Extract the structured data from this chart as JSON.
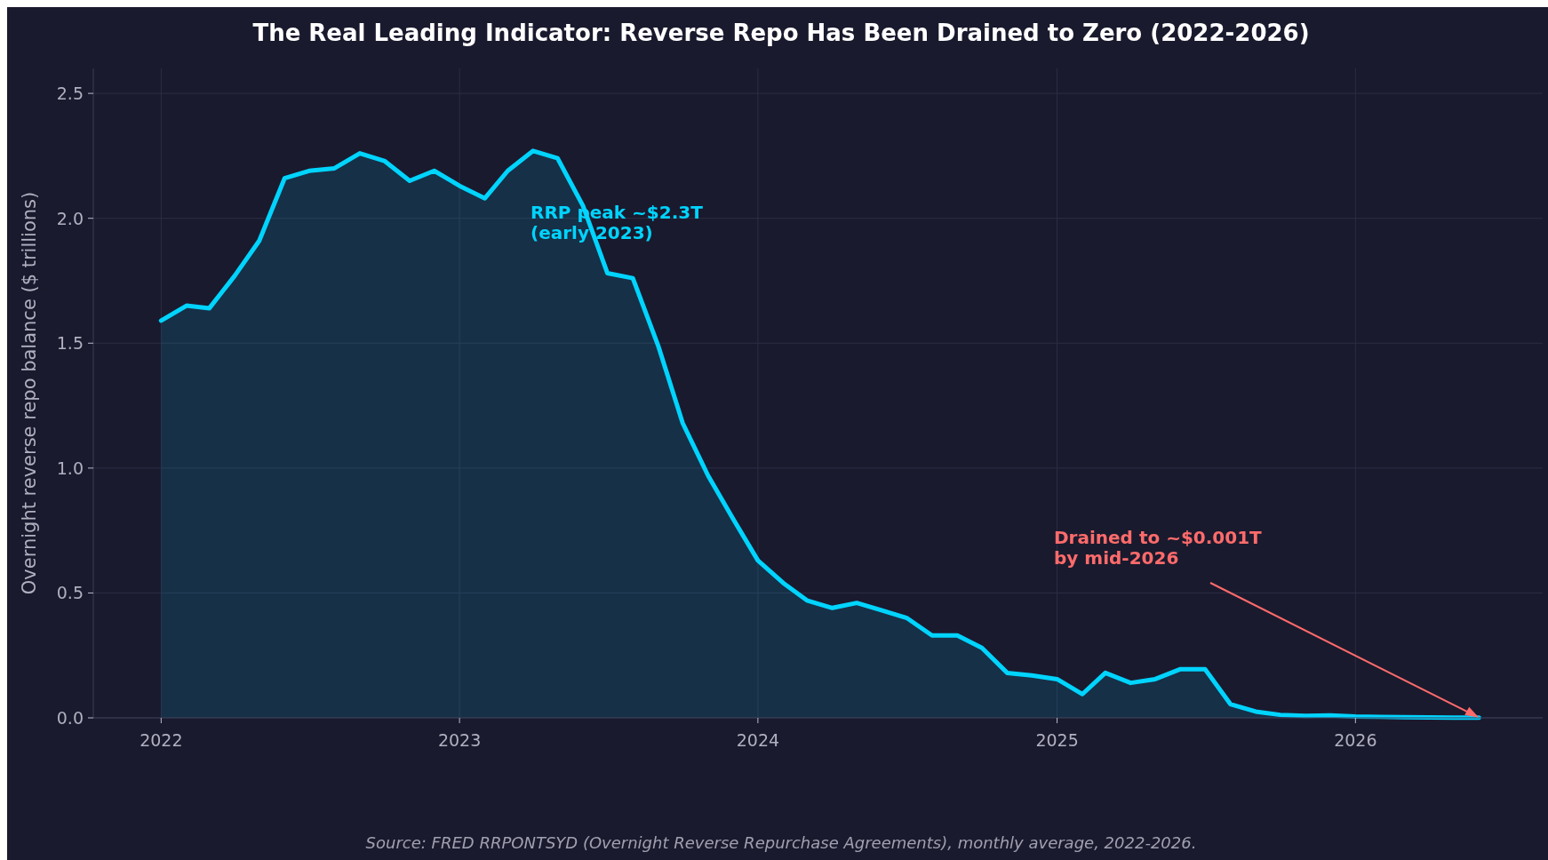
{
  "chart_data": {
    "type": "area",
    "title": "The Real Leading Indicator: Reverse Repo Has Been Drained to Zero (2022-2026)",
    "ylabel": "Overnight reverse repo balance ($ trillions)",
    "x": [
      "2022-01",
      "2022-02",
      "2022-03",
      "2022-04",
      "2022-05",
      "2022-06",
      "2022-07",
      "2022-08",
      "2022-09",
      "2022-10",
      "2022-11",
      "2022-12",
      "2023-01",
      "2023-02",
      "2023-03",
      "2023-04",
      "2023-05",
      "2023-06",
      "2023-07",
      "2023-08",
      "2023-09",
      "2023-10",
      "2023-11",
      "2023-12",
      "2024-01",
      "2024-02",
      "2024-03",
      "2024-04",
      "2024-05",
      "2024-06",
      "2024-07",
      "2024-08",
      "2024-09",
      "2024-10",
      "2024-11",
      "2024-12",
      "2025-01",
      "2025-02",
      "2025-03",
      "2025-04",
      "2025-05",
      "2025-06",
      "2025-07",
      "2025-08",
      "2025-09",
      "2025-10",
      "2025-11",
      "2025-12",
      "2026-01",
      "2026-02",
      "2026-03",
      "2026-04",
      "2026-05",
      "2026-06"
    ],
    "series": [
      {
        "color": "#00d4ff",
        "values": [
          1.59,
          1.65,
          1.64,
          1.77,
          1.91,
          2.16,
          2.19,
          2.2,
          2.26,
          2.23,
          2.15,
          2.19,
          2.13,
          2.08,
          2.19,
          2.27,
          2.24,
          2.05,
          1.78,
          1.76,
          1.49,
          1.18,
          0.97,
          0.8,
          0.63,
          0.54,
          0.47,
          0.44,
          0.46,
          0.43,
          0.4,
          0.33,
          0.33,
          0.28,
          0.18,
          0.17,
          0.155,
          0.095,
          0.18,
          0.14,
          0.155,
          0.195,
          0.195,
          0.055,
          0.025,
          0.012,
          0.008,
          0.01,
          0.005,
          0.004,
          0.003,
          0.002,
          0.001,
          0.001
        ]
      }
    ],
    "xlim": [
      "2021-10-10",
      "2026-08-18"
    ],
    "ylim": [
      0,
      2.6
    ],
    "xticks": [
      {
        "value": "2022-01-01",
        "label": "2022"
      },
      {
        "value": "2023-01-01",
        "label": "2023"
      },
      {
        "value": "2024-01-01",
        "label": "2024"
      },
      {
        "value": "2025-01-01",
        "label": "2025"
      },
      {
        "value": "2026-01-01",
        "label": "2026"
      }
    ],
    "yticks": [
      {
        "value": 0,
        "label": "0.0"
      },
      {
        "value": 0.5,
        "label": "0.5"
      },
      {
        "value": 1,
        "label": "1.0"
      },
      {
        "value": 1.5,
        "label": "1.5"
      },
      {
        "value": 2,
        "label": "2.0"
      },
      {
        "value": 2.5,
        "label": "2.5"
      }
    ],
    "grid": true,
    "annotations": [
      "RRP peak ~$2.3T\n(early 2023)",
      "Drained to ~$0.001T\nby mid-2026",
      "Source: FRED RRPONTSYD (Overnight Reverse Repurchase Agreements), monthly average, 2022-2026."
    ]
  }
}
